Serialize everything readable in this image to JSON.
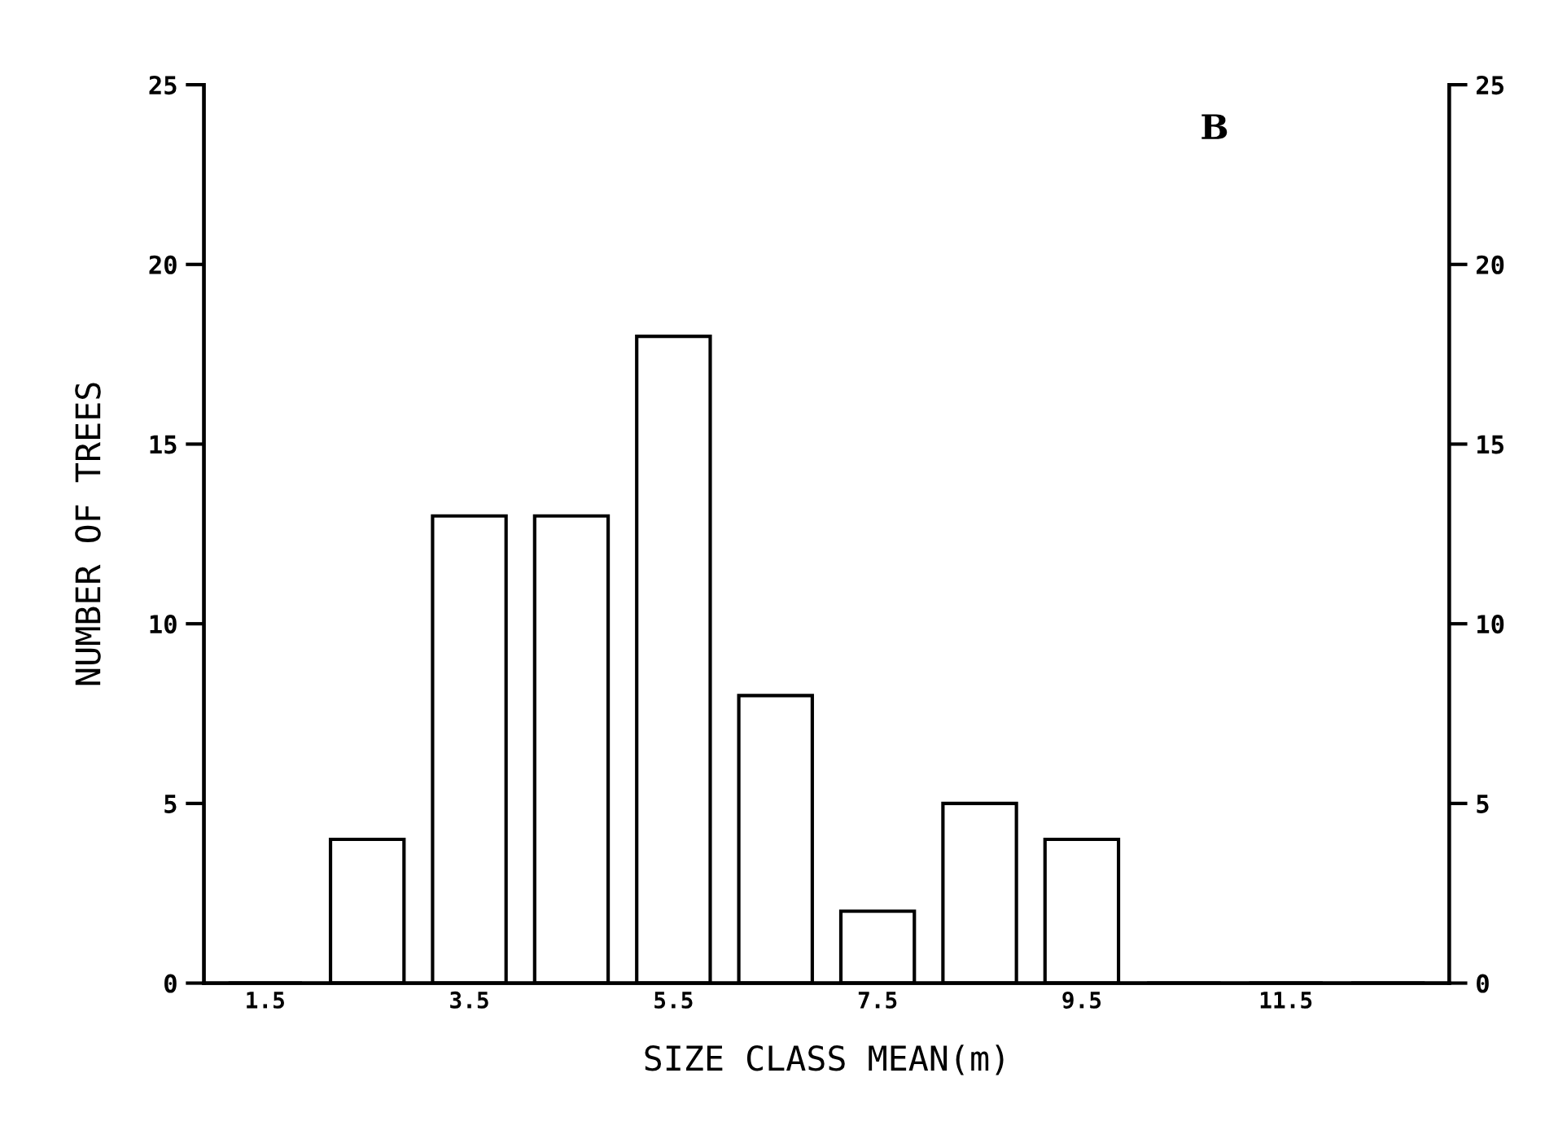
{
  "chart_data": {
    "type": "bar",
    "xlabel": "SIZE CLASS MEAN(m)",
    "ylabel": "NUMBER OF TREES",
    "categories": [
      "1.5",
      null,
      "3.5",
      null,
      "5.5",
      null,
      "7.5",
      null,
      "9.5",
      null,
      "11.5",
      null
    ],
    "values": [
      0,
      4,
      13,
      13,
      18,
      8,
      2,
      5,
      4,
      0,
      0,
      0
    ],
    "color": "#ffffff",
    "ylim": [
      0,
      25
    ],
    "yticks": [
      0,
      5,
      10,
      15,
      20,
      25
    ],
    "y2lim": [
      0,
      25
    ],
    "y2ticks": [
      0,
      5,
      10,
      15,
      20,
      25
    ],
    "annotations": [
      "B"
    ],
    "grid": false
  }
}
